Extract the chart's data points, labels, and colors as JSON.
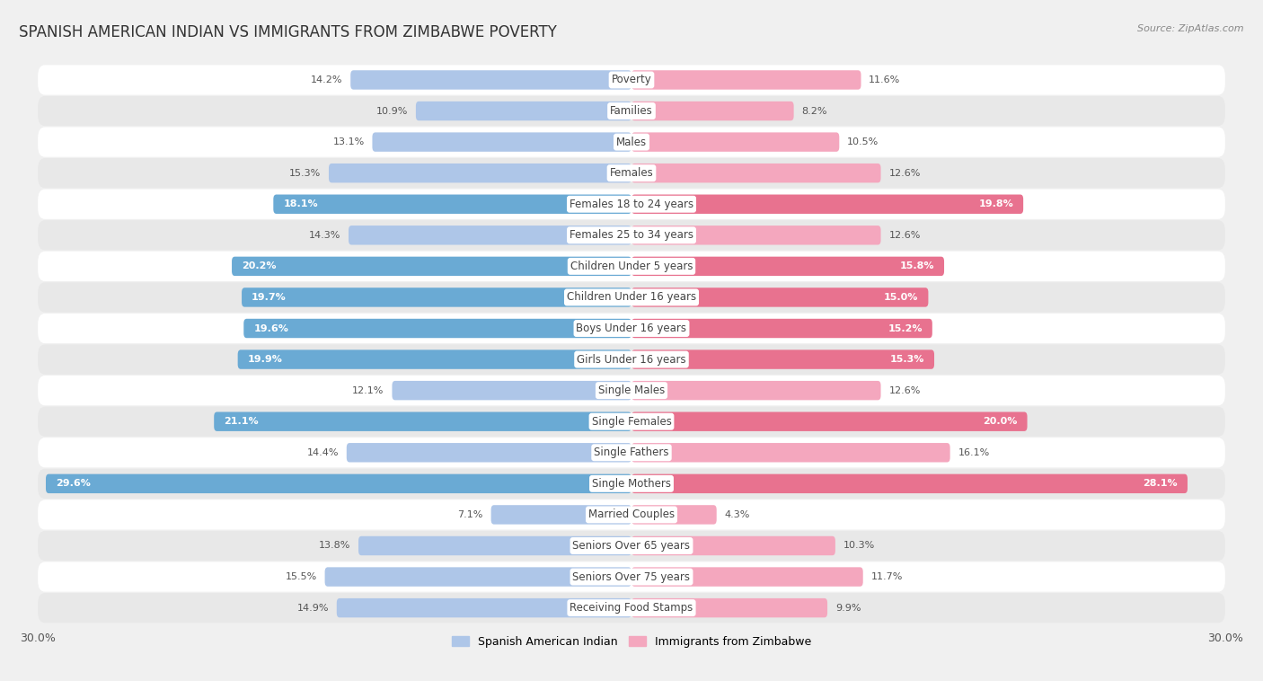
{
  "title": "SPANISH AMERICAN INDIAN VS IMMIGRANTS FROM ZIMBABWE POVERTY",
  "source": "Source: ZipAtlas.com",
  "categories": [
    "Poverty",
    "Families",
    "Males",
    "Females",
    "Females 18 to 24 years",
    "Females 25 to 34 years",
    "Children Under 5 years",
    "Children Under 16 years",
    "Boys Under 16 years",
    "Girls Under 16 years",
    "Single Males",
    "Single Females",
    "Single Fathers",
    "Single Mothers",
    "Married Couples",
    "Seniors Over 65 years",
    "Seniors Over 75 years",
    "Receiving Food Stamps"
  ],
  "left_values": [
    14.2,
    10.9,
    13.1,
    15.3,
    18.1,
    14.3,
    20.2,
    19.7,
    19.6,
    19.9,
    12.1,
    21.1,
    14.4,
    29.6,
    7.1,
    13.8,
    15.5,
    14.9
  ],
  "right_values": [
    11.6,
    8.2,
    10.5,
    12.6,
    19.8,
    12.6,
    15.8,
    15.0,
    15.2,
    15.3,
    12.6,
    20.0,
    16.1,
    28.1,
    4.3,
    10.3,
    11.7,
    9.9
  ],
  "left_color_default": "#aec6e8",
  "left_color_highlight": "#6aaad4",
  "right_color_default": "#f4a7be",
  "right_color_highlight": "#e8728f",
  "highlight_rows": [
    4,
    6,
    7,
    8,
    9,
    11,
    13
  ],
  "left_legend": "Spanish American Indian",
  "right_legend": "Immigrants from Zimbabwe",
  "x_max": 30.0,
  "bg_color": "#f0f0f0",
  "row_bg_odd": "#ffffff",
  "row_bg_even": "#e8e8e8",
  "title_fontsize": 12,
  "label_fontsize": 8.5,
  "value_fontsize": 8.0
}
